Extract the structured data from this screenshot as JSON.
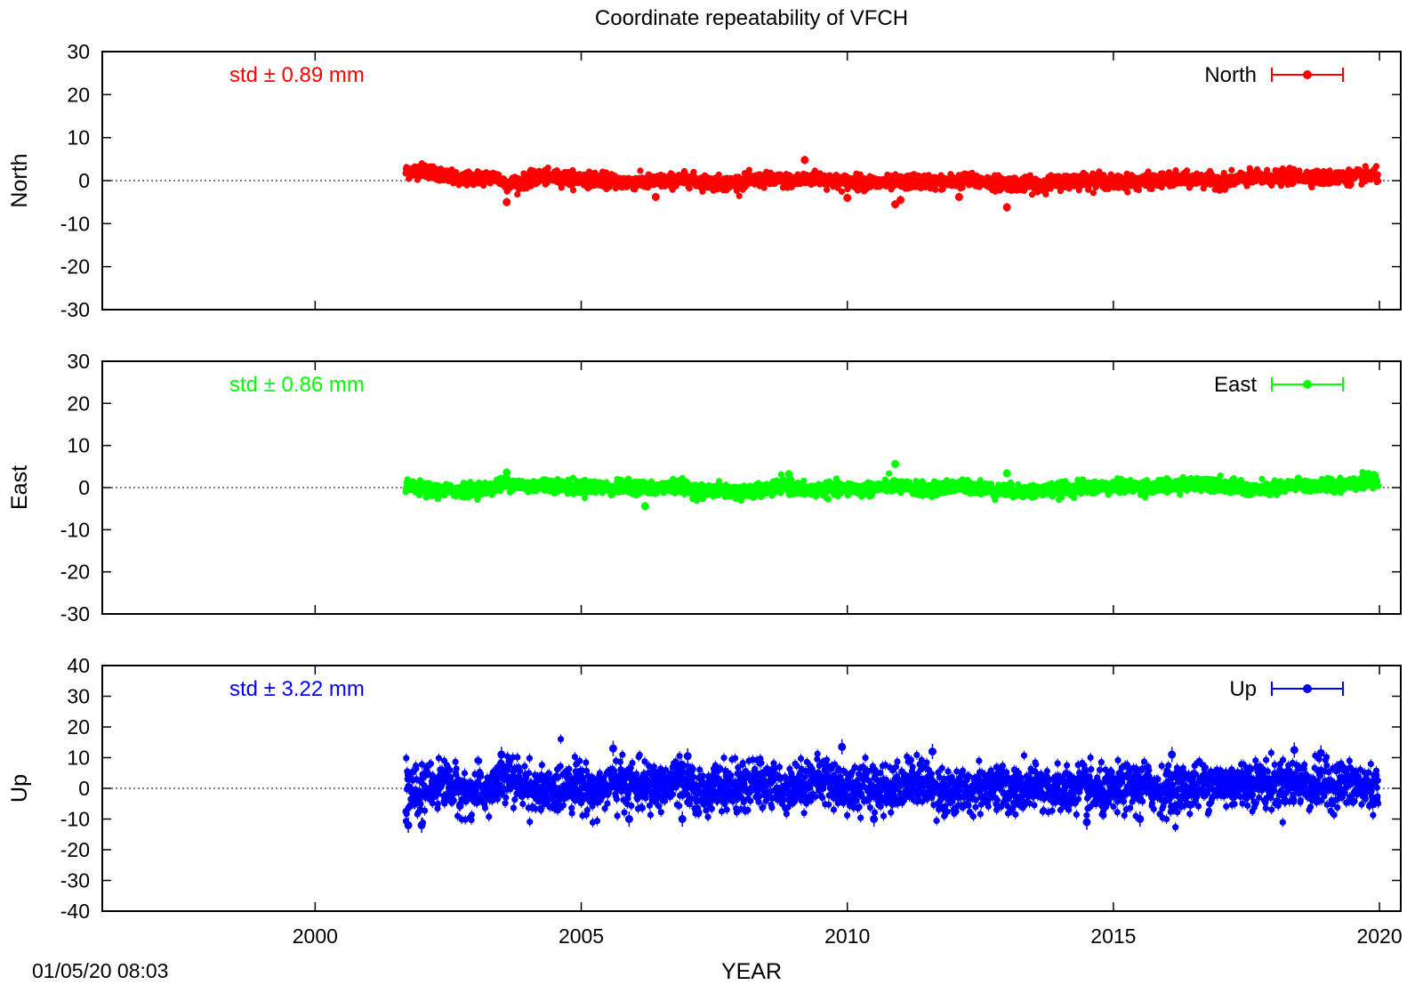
{
  "chart_data": {
    "type": "scatter",
    "title": "Coordinate repeatability of VFCH",
    "xlabel": "YEAR",
    "x_ticks": [
      2000,
      2005,
      2010,
      2015,
      2020
    ],
    "x_range": [
      1996,
      2020.4
    ],
    "data_range": [
      2001.7,
      2019.98
    ],
    "error_bars": true,
    "zero_reference_line": "dotted",
    "legend_placement": "top-right",
    "panels": [
      {
        "name": "North",
        "ylabel": "North",
        "ylim": [
          -30,
          30
        ],
        "y_ticks": [
          30,
          20,
          10,
          0,
          -10,
          -20,
          -30
        ],
        "color": "#ff0000",
        "std_label": "std ± 0.89 mm",
        "legend": "North",
        "std_mm": 0.89,
        "series": [
          [
            2001.7,
            2.0
          ],
          [
            2002.0,
            2.4
          ],
          [
            2002.3,
            1.8
          ],
          [
            2002.7,
            0.0
          ],
          [
            2003.0,
            0.6
          ],
          [
            2003.4,
            0.8
          ],
          [
            2003.6,
            -0.8
          ],
          [
            2003.9,
            -0.2
          ],
          [
            2004.2,
            0.8
          ],
          [
            2004.6,
            0.7
          ],
          [
            2005.0,
            0.4
          ],
          [
            2005.4,
            0.2
          ],
          [
            2005.8,
            -0.4
          ],
          [
            2006.2,
            -0.3
          ],
          [
            2006.6,
            -0.1
          ],
          [
            2007.0,
            0.3
          ],
          [
            2007.4,
            -0.5
          ],
          [
            2007.8,
            -0.6
          ],
          [
            2008.2,
            0.0
          ],
          [
            2008.6,
            0.2
          ],
          [
            2009.0,
            -0.1
          ],
          [
            2009.4,
            0.6
          ],
          [
            2009.8,
            -0.2
          ],
          [
            2010.2,
            -0.3
          ],
          [
            2010.6,
            -0.6
          ],
          [
            2011.0,
            -0.4
          ],
          [
            2011.4,
            -0.2
          ],
          [
            2011.8,
            -0.4
          ],
          [
            2012.2,
            0.1
          ],
          [
            2012.6,
            -0.3
          ],
          [
            2013.0,
            -0.6
          ],
          [
            2013.4,
            -0.9
          ],
          [
            2013.8,
            -0.6
          ],
          [
            2014.2,
            0.0
          ],
          [
            2014.6,
            0.2
          ],
          [
            2015.0,
            -0.4
          ],
          [
            2015.4,
            -0.3
          ],
          [
            2015.8,
            0.0
          ],
          [
            2016.2,
            0.2
          ],
          [
            2016.6,
            0.3
          ],
          [
            2017.0,
            -0.2
          ],
          [
            2017.4,
            0.4
          ],
          [
            2017.8,
            0.6
          ],
          [
            2018.2,
            0.8
          ],
          [
            2018.6,
            1.0
          ],
          [
            2019.0,
            0.6
          ],
          [
            2019.4,
            0.8
          ],
          [
            2019.8,
            1.1
          ]
        ],
        "outliers": [
          [
            2003.6,
            -5.0
          ],
          [
            2009.2,
            4.8
          ],
          [
            2010.0,
            -4.0
          ],
          [
            2010.9,
            -5.5
          ],
          [
            2011.0,
            -4.5
          ],
          [
            2012.1,
            -3.8
          ],
          [
            2013.0,
            -6.2
          ],
          [
            2006.4,
            -3.8
          ]
        ]
      },
      {
        "name": "East",
        "ylabel": "East",
        "ylim": [
          -30,
          30
        ],
        "y_ticks": [
          30,
          20,
          10,
          0,
          -10,
          -20,
          -30
        ],
        "color": "#00ff00",
        "std_label": "std ± 0.86 mm",
        "legend": "East",
        "std_mm": 0.86,
        "series": [
          [
            2001.7,
            0.4
          ],
          [
            2002.0,
            -0.4
          ],
          [
            2002.4,
            -0.8
          ],
          [
            2002.8,
            -0.5
          ],
          [
            2003.2,
            -0.2
          ],
          [
            2003.6,
            1.0
          ],
          [
            2004.0,
            0.4
          ],
          [
            2004.4,
            0.7
          ],
          [
            2004.8,
            0.1
          ],
          [
            2005.2,
            0.2
          ],
          [
            2005.6,
            -0.2
          ],
          [
            2006.0,
            0.3
          ],
          [
            2006.4,
            -0.4
          ],
          [
            2006.8,
            0.6
          ],
          [
            2007.2,
            -0.9
          ],
          [
            2007.6,
            -0.6
          ],
          [
            2008.0,
            -1.2
          ],
          [
            2008.4,
            -0.8
          ],
          [
            2008.8,
            0.5
          ],
          [
            2009.2,
            -0.6
          ],
          [
            2009.6,
            -0.5
          ],
          [
            2010.0,
            -0.3
          ],
          [
            2010.4,
            -0.4
          ],
          [
            2010.8,
            0.6
          ],
          [
            2011.2,
            -0.2
          ],
          [
            2011.6,
            -0.5
          ],
          [
            2012.0,
            0.3
          ],
          [
            2012.4,
            0.2
          ],
          [
            2012.8,
            -0.6
          ],
          [
            2013.2,
            -0.9
          ],
          [
            2013.6,
            -0.8
          ],
          [
            2014.0,
            -0.5
          ],
          [
            2014.4,
            0.0
          ],
          [
            2014.8,
            0.2
          ],
          [
            2015.2,
            0.2
          ],
          [
            2015.6,
            0.1
          ],
          [
            2016.0,
            0.4
          ],
          [
            2016.4,
            0.7
          ],
          [
            2016.8,
            1.2
          ],
          [
            2017.2,
            0.3
          ],
          [
            2017.6,
            -0.6
          ],
          [
            2018.0,
            -0.4
          ],
          [
            2018.4,
            0.6
          ],
          [
            2018.8,
            0.4
          ],
          [
            2019.2,
            0.8
          ],
          [
            2019.6,
            1.3
          ],
          [
            2019.95,
            1.5
          ]
        ],
        "outliers": [
          [
            2003.6,
            3.6
          ],
          [
            2006.2,
            -4.4
          ],
          [
            2008.9,
            3.2
          ],
          [
            2010.9,
            5.6
          ],
          [
            2013.0,
            3.4
          ]
        ]
      },
      {
        "name": "Up",
        "ylabel": "Up",
        "ylim": [
          -40,
          40
        ],
        "y_ticks": [
          40,
          30,
          20,
          10,
          0,
          -10,
          -20,
          -30,
          -40
        ],
        "color": "#0000ff",
        "std_label": "std ± 3.22 mm",
        "legend": "Up",
        "std_mm": 3.22,
        "series": [
          [
            2001.7,
            -2.0
          ],
          [
            2002.0,
            -1.0
          ],
          [
            2002.4,
            2.0
          ],
          [
            2002.8,
            -1.5
          ],
          [
            2003.2,
            -1.0
          ],
          [
            2003.6,
            3.0
          ],
          [
            2004.0,
            0.5
          ],
          [
            2004.4,
            -2.0
          ],
          [
            2004.8,
            2.0
          ],
          [
            2005.2,
            -1.0
          ],
          [
            2005.6,
            1.5
          ],
          [
            2006.0,
            1.0
          ],
          [
            2006.4,
            0.0
          ],
          [
            2006.8,
            2.5
          ],
          [
            2007.2,
            -1.5
          ],
          [
            2007.6,
            1.0
          ],
          [
            2008.0,
            0.0
          ],
          [
            2008.4,
            2.0
          ],
          [
            2008.8,
            0.0
          ],
          [
            2009.2,
            1.5
          ],
          [
            2009.6,
            3.0
          ],
          [
            2010.0,
            -0.5
          ],
          [
            2010.4,
            1.0
          ],
          [
            2010.8,
            0.0
          ],
          [
            2011.2,
            2.5
          ],
          [
            2011.6,
            1.0
          ],
          [
            2012.0,
            -2.5
          ],
          [
            2012.4,
            0.0
          ],
          [
            2012.8,
            1.0
          ],
          [
            2013.2,
            -1.0
          ],
          [
            2013.6,
            0.5
          ],
          [
            2014.0,
            -1.0
          ],
          [
            2014.4,
            0.5
          ],
          [
            2014.8,
            -2.0
          ],
          [
            2015.2,
            0.0
          ],
          [
            2015.6,
            1.0
          ],
          [
            2016.0,
            -1.0
          ],
          [
            2016.4,
            0.5
          ],
          [
            2016.8,
            1.5
          ],
          [
            2017.2,
            1.0
          ],
          [
            2017.6,
            2.0
          ],
          [
            2018.0,
            1.0
          ],
          [
            2018.4,
            2.0
          ],
          [
            2018.8,
            0.5
          ],
          [
            2019.2,
            1.5
          ],
          [
            2019.6,
            0.5
          ],
          [
            2019.95,
            0.0
          ]
        ],
        "outliers": [
          [
            2001.75,
            -12.0
          ],
          [
            2003.5,
            11.0
          ],
          [
            2005.6,
            13.0
          ],
          [
            2005.9,
            -10.0
          ],
          [
            2006.9,
            -10.0
          ],
          [
            2009.9,
            13.5
          ],
          [
            2010.5,
            -10.0
          ],
          [
            2011.6,
            12.0
          ],
          [
            2014.5,
            -11.0
          ],
          [
            2015.5,
            -10.0
          ],
          [
            2016.1,
            11.0
          ],
          [
            2018.4,
            12.5
          ],
          [
            2018.9,
            11.5
          ],
          [
            2002.0,
            -12.0
          ],
          [
            2007.0,
            10.5
          ]
        ]
      }
    ]
  },
  "footer": {
    "timestamp": "01/05/20 08:03"
  }
}
